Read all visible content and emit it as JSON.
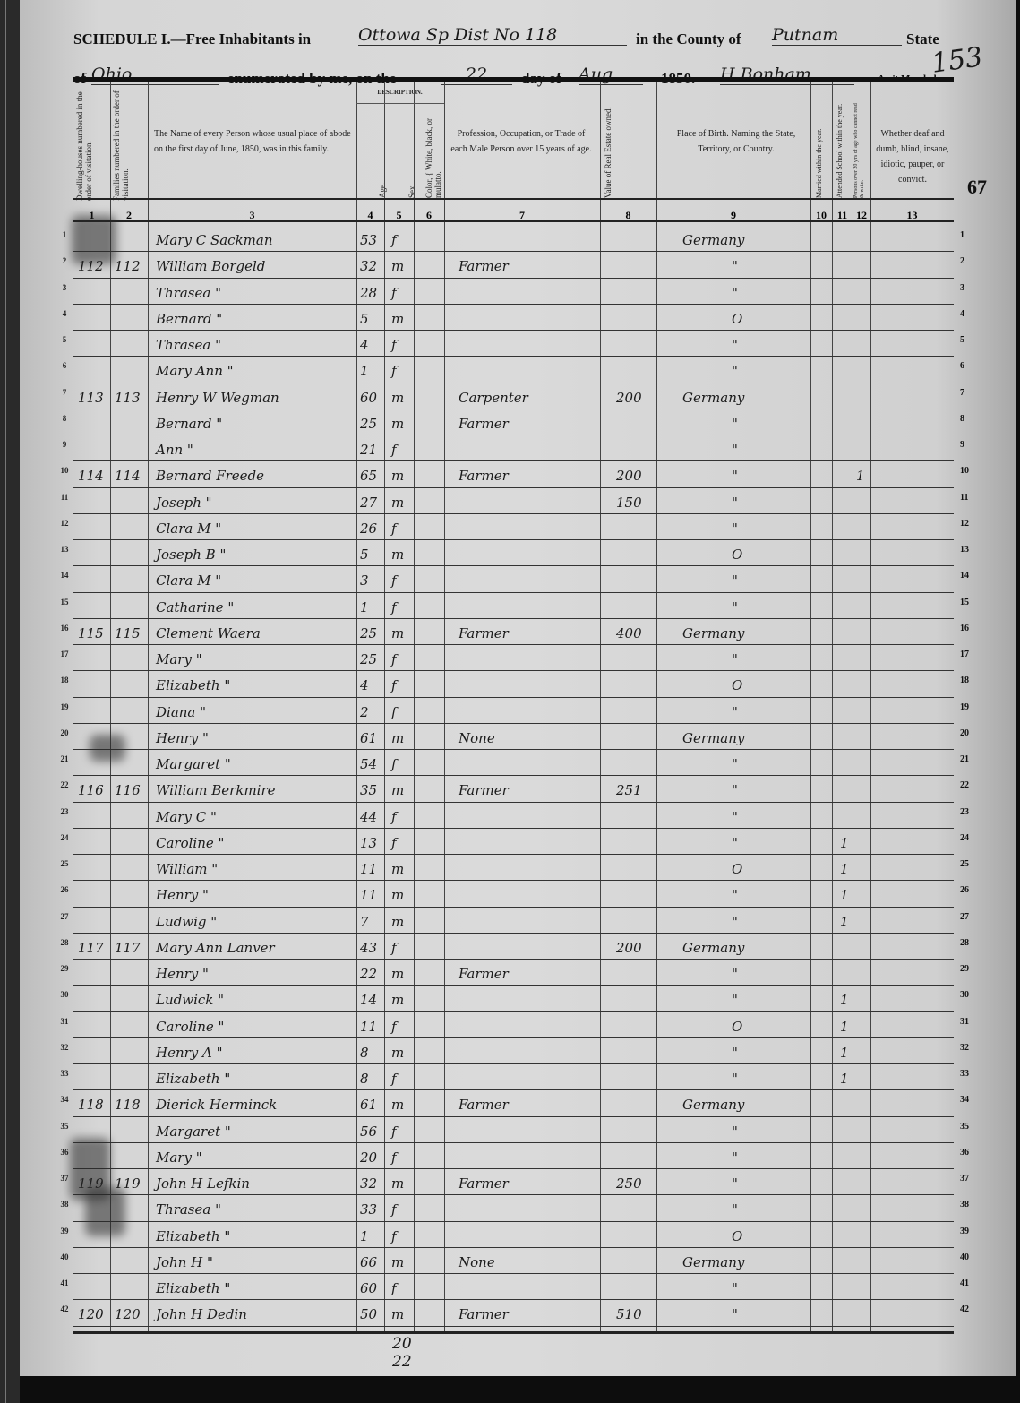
{
  "header": {
    "schedule": "SCHEDULE I.—Free Inhabitants in",
    "place": "Ottowa Sp Dist No 118",
    "county_label": "in the County of",
    "county": "Putnam",
    "state_label": "State",
    "of_label": "of",
    "state": "Ohio",
    "enumerated_label": "enumerated by me, on the",
    "day": "22",
    "day_of_label": "day of",
    "month": "Aug",
    "year": "1850.",
    "marshal": "H Bonham",
    "marshal_label": "Ass't Marshal.",
    "page_stamp": "153",
    "margin_page": "67"
  },
  "columns": {
    "c1": "Dwelling-houses numbered in the order of visitation.",
    "c2": "Families numbered in the order of visitation.",
    "c3": "The Name of every Person whose usual place of abode on the first day of June, 1850, was in this family.",
    "description": "DESCRIPTION.",
    "c4": "Age.",
    "c5": "Sex.",
    "c6": "Color, { White, black, or mulatto.",
    "c7": "Profession, Occupation, or Trade of each Male Person over 15 years of age.",
    "c8": "Value of Real Estate owned.",
    "c9": "Place of Birth. Naming the State, Territory, or Country.",
    "c10": "Married within the year.",
    "c11": "Attended School within the year.",
    "c12": "Persons over 20 y'rs of age who cannot read & write.",
    "c13": "Whether deaf and dumb, blind, insane, idiotic, pauper, or convict.",
    "numbers": [
      "1",
      "2",
      "3",
      "4",
      "5",
      "6",
      "7",
      "8",
      "9",
      "10",
      "11",
      "12",
      "13"
    ]
  },
  "rows": [
    {
      "n": "1",
      "d": "",
      "f": "",
      "name": "Mary C Sackman",
      "age": "53",
      "sex": "f",
      "occ": "",
      "val": "",
      "birth": "Germany",
      "school": "",
      "read": ""
    },
    {
      "n": "2",
      "d": "112",
      "f": "112",
      "name": "William Borgeld",
      "age": "32",
      "sex": "m",
      "occ": "Farmer",
      "val": "",
      "birth": "\"",
      "school": "",
      "read": ""
    },
    {
      "n": "3",
      "d": "",
      "f": "",
      "name": "Thrasea      \"",
      "age": "28",
      "sex": "f",
      "occ": "",
      "val": "",
      "birth": "\"",
      "school": "",
      "read": ""
    },
    {
      "n": "4",
      "d": "",
      "f": "",
      "name": "Bernard      \"",
      "age": "5",
      "sex": "m",
      "occ": "",
      "val": "",
      "birth": "O",
      "school": "",
      "read": ""
    },
    {
      "n": "5",
      "d": "",
      "f": "",
      "name": "Thrasea      \"",
      "age": "4",
      "sex": "f",
      "occ": "",
      "val": "",
      "birth": "\"",
      "school": "",
      "read": ""
    },
    {
      "n": "6",
      "d": "",
      "f": "",
      "name": "Mary Ann    \"",
      "age": "1",
      "sex": "f",
      "occ": "",
      "val": "",
      "birth": "\"",
      "school": "",
      "read": ""
    },
    {
      "n": "7",
      "d": "113",
      "f": "113",
      "name": "Henry W Wegman",
      "age": "60",
      "sex": "m",
      "occ": "Carpenter",
      "val": "200",
      "birth": "Germany",
      "school": "",
      "read": ""
    },
    {
      "n": "8",
      "d": "",
      "f": "",
      "name": "Bernard       \"",
      "age": "25",
      "sex": "m",
      "occ": "Farmer",
      "val": "",
      "birth": "\"",
      "school": "",
      "read": ""
    },
    {
      "n": "9",
      "d": "",
      "f": "",
      "name": "Ann            \"",
      "age": "21",
      "sex": "f",
      "occ": "",
      "val": "",
      "birth": "\"",
      "school": "",
      "read": ""
    },
    {
      "n": "10",
      "d": "114",
      "f": "114",
      "name": "Bernard Freede",
      "age": "65",
      "sex": "m",
      "occ": "Farmer",
      "val": "200",
      "birth": "\"",
      "school": "",
      "read": "1"
    },
    {
      "n": "11",
      "d": "",
      "f": "",
      "name": "Joseph        \"",
      "age": "27",
      "sex": "m",
      "occ": "",
      "val": "150",
      "birth": "\"",
      "school": "",
      "read": ""
    },
    {
      "n": "12",
      "d": "",
      "f": "",
      "name": "Clara M       \"",
      "age": "26",
      "sex": "f",
      "occ": "",
      "val": "",
      "birth": "\"",
      "school": "",
      "read": ""
    },
    {
      "n": "13",
      "d": "",
      "f": "",
      "name": "Joseph B     \"",
      "age": "5",
      "sex": "m",
      "occ": "",
      "val": "",
      "birth": "O",
      "school": "",
      "read": ""
    },
    {
      "n": "14",
      "d": "",
      "f": "",
      "name": "Clara M       \"",
      "age": "3",
      "sex": "f",
      "occ": "",
      "val": "",
      "birth": "\"",
      "school": "",
      "read": ""
    },
    {
      "n": "15",
      "d": "",
      "f": "",
      "name": "Catharine     \"",
      "age": "1",
      "sex": "f",
      "occ": "",
      "val": "",
      "birth": "\"",
      "school": "",
      "read": ""
    },
    {
      "n": "16",
      "d": "115",
      "f": "115",
      "name": "Clement Waera",
      "age": "25",
      "sex": "m",
      "occ": "Farmer",
      "val": "400",
      "birth": "Germany",
      "school": "",
      "read": ""
    },
    {
      "n": "17",
      "d": "",
      "f": "",
      "name": "Mary          \"",
      "age": "25",
      "sex": "f",
      "occ": "",
      "val": "",
      "birth": "\"",
      "school": "",
      "read": ""
    },
    {
      "n": "18",
      "d": "",
      "f": "",
      "name": "Elizabeth     \"",
      "age": "4",
      "sex": "f",
      "occ": "",
      "val": "",
      "birth": "O",
      "school": "",
      "read": ""
    },
    {
      "n": "19",
      "d": "",
      "f": "",
      "name": "Diana         \"",
      "age": "2",
      "sex": "f",
      "occ": "",
      "val": "",
      "birth": "\"",
      "school": "",
      "read": ""
    },
    {
      "n": "20",
      "d": "",
      "f": "",
      "name": "Henry         \"",
      "age": "61",
      "sex": "m",
      "occ": "None",
      "val": "",
      "birth": "Germany",
      "school": "",
      "read": ""
    },
    {
      "n": "21",
      "d": "",
      "f": "",
      "name": "Margaret      \"",
      "age": "54",
      "sex": "f",
      "occ": "",
      "val": "",
      "birth": "\"",
      "school": "",
      "read": ""
    },
    {
      "n": "22",
      "d": "116",
      "f": "116",
      "name": "William Berkmire",
      "age": "35",
      "sex": "m",
      "occ": "Farmer",
      "val": "251",
      "birth": "\"",
      "school": "",
      "read": ""
    },
    {
      "n": "23",
      "d": "",
      "f": "",
      "name": "Mary C        \"",
      "age": "44",
      "sex": "f",
      "occ": "",
      "val": "",
      "birth": "\"",
      "school": "",
      "read": ""
    },
    {
      "n": "24",
      "d": "",
      "f": "",
      "name": "Caroline      \"",
      "age": "13",
      "sex": "f",
      "occ": "",
      "val": "",
      "birth": "\"",
      "school": "1",
      "read": ""
    },
    {
      "n": "25",
      "d": "",
      "f": "",
      "name": "William       \"",
      "age": "11",
      "sex": "m",
      "occ": "",
      "val": "",
      "birth": "O",
      "school": "1",
      "read": ""
    },
    {
      "n": "26",
      "d": "",
      "f": "",
      "name": "Henry         \"",
      "age": "11",
      "sex": "m",
      "occ": "",
      "val": "",
      "birth": "\"",
      "school": "1",
      "read": ""
    },
    {
      "n": "27",
      "d": "",
      "f": "",
      "name": "Ludwig        \"",
      "age": "7",
      "sex": "m",
      "occ": "",
      "val": "",
      "birth": "\"",
      "school": "1",
      "read": ""
    },
    {
      "n": "28",
      "d": "117",
      "f": "117",
      "name": "Mary Ann Lanver",
      "age": "43",
      "sex": "f",
      "occ": "",
      "val": "200",
      "birth": "Germany",
      "school": "",
      "read": ""
    },
    {
      "n": "29",
      "d": "",
      "f": "",
      "name": "Henry         \"",
      "age": "22",
      "sex": "m",
      "occ": "Farmer",
      "val": "",
      "birth": "\"",
      "school": "",
      "read": ""
    },
    {
      "n": "30",
      "d": "",
      "f": "",
      "name": "Ludwick       \"",
      "age": "14",
      "sex": "m",
      "occ": "",
      "val": "",
      "birth": "\"",
      "school": "1",
      "read": ""
    },
    {
      "n": "31",
      "d": "",
      "f": "",
      "name": "Caroline      \"",
      "age": "11",
      "sex": "f",
      "occ": "",
      "val": "",
      "birth": "O",
      "school": "1",
      "read": ""
    },
    {
      "n": "32",
      "d": "",
      "f": "",
      "name": "Henry A       \"",
      "age": "8",
      "sex": "m",
      "occ": "",
      "val": "",
      "birth": "\"",
      "school": "1",
      "read": ""
    },
    {
      "n": "33",
      "d": "",
      "f": "",
      "name": "Elizabeth     \"",
      "age": "8",
      "sex": "f",
      "occ": "",
      "val": "",
      "birth": "\"",
      "school": "1",
      "read": ""
    },
    {
      "n": "34",
      "d": "118",
      "f": "118",
      "name": "Dierick Herminck",
      "age": "61",
      "sex": "m",
      "occ": "Farmer",
      "val": "",
      "birth": "Germany",
      "school": "",
      "read": ""
    },
    {
      "n": "35",
      "d": "",
      "f": "",
      "name": "Margaret      \"",
      "age": "56",
      "sex": "f",
      "occ": "",
      "val": "",
      "birth": "\"",
      "school": "",
      "read": ""
    },
    {
      "n": "36",
      "d": "",
      "f": "",
      "name": "Mary          \"",
      "age": "20",
      "sex": "f",
      "occ": "",
      "val": "",
      "birth": "\"",
      "school": "",
      "read": ""
    },
    {
      "n": "37",
      "d": "119",
      "f": "119",
      "name": "John H Lefkin",
      "age": "32",
      "sex": "m",
      "occ": "Farmer",
      "val": "250",
      "birth": "\"",
      "school": "",
      "read": ""
    },
    {
      "n": "38",
      "d": "",
      "f": "",
      "name": "Thrasea       \"",
      "age": "33",
      "sex": "f",
      "occ": "",
      "val": "",
      "birth": "\"",
      "school": "",
      "read": ""
    },
    {
      "n": "39",
      "d": "",
      "f": "",
      "name": "Elizabeth     \"",
      "age": "1",
      "sex": "f",
      "occ": "",
      "val": "",
      "birth": "O",
      "school": "",
      "read": ""
    },
    {
      "n": "40",
      "d": "",
      "f": "",
      "name": "John H        \"",
      "age": "66",
      "sex": "m",
      "occ": "None",
      "val": "",
      "birth": "Germany",
      "school": "",
      "read": ""
    },
    {
      "n": "41",
      "d": "",
      "f": "",
      "name": "Elizabeth     \"",
      "age": "60",
      "sex": "f",
      "occ": "",
      "val": "",
      "birth": "\"",
      "school": "",
      "read": ""
    },
    {
      "n": "42",
      "d": "120",
      "f": "120",
      "name": "John H Dedin",
      "age": "50",
      "sex": "m",
      "occ": "Farmer",
      "val": "510",
      "birth": "\"",
      "school": "",
      "read": ""
    }
  ],
  "tally": {
    "a": "20",
    "b": "22"
  }
}
